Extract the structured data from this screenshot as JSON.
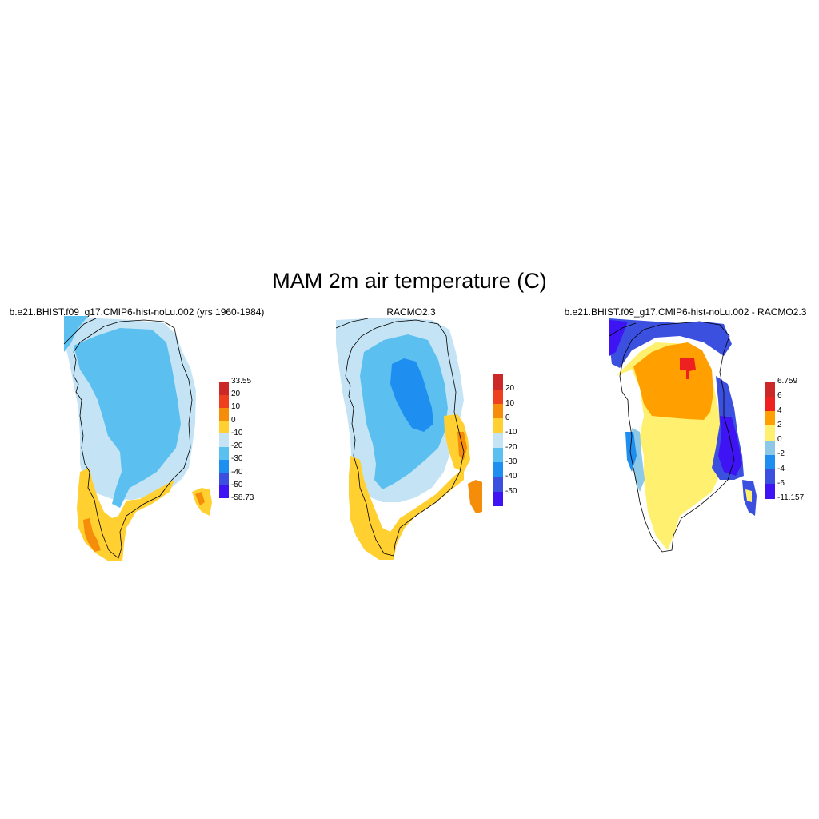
{
  "title": "MAM 2m air temperature (C)",
  "panels": [
    {
      "id": "p1",
      "title": "b.e21.BHIST.f09_g17.CMIP6-hist-noLu.002 (yrs 1960-1984)",
      "colorbar": {
        "colors": [
          "#3f14f4",
          "#3c50e0",
          "#1e8ef0",
          "#5bc0f0",
          "#c4e4f6",
          "#ffd030",
          "#f58c0a",
          "#ee3f1e",
          "#cc2828"
        ],
        "labels": [
          "33.55",
          "20",
          "10",
          "0",
          "-10",
          "-20",
          "-30",
          "-40",
          "-50",
          "-58.73"
        ]
      }
    },
    {
      "id": "p2",
      "title": "RACMO2.3",
      "colorbar": {
        "colors": [
          "#3f14f4",
          "#3c50e0",
          "#1e8ef0",
          "#5bc0f0",
          "#c4e4f6",
          "#ffd030",
          "#f58c0a",
          "#ee3f1e",
          "#cc2828"
        ],
        "labels": [
          "20",
          "10",
          "0",
          "-10",
          "-20",
          "-30",
          "-40",
          "-50"
        ]
      }
    },
    {
      "id": "p3",
      "title": "b.e21.BHIST.f09_g17.CMIP6-hist-noLu.002 - RACMO2.3",
      "colorbar": {
        "colors": [
          "#3f14f4",
          "#3c50e0",
          "#1e8ef0",
          "#8cc8e8",
          "#fff070",
          "#ffa000",
          "#ee2020",
          "#cc2828"
        ],
        "labels": [
          "6.759",
          "6",
          "4",
          "2",
          "0",
          "-2",
          "-4",
          "-6",
          "-11.157"
        ]
      }
    }
  ]
}
